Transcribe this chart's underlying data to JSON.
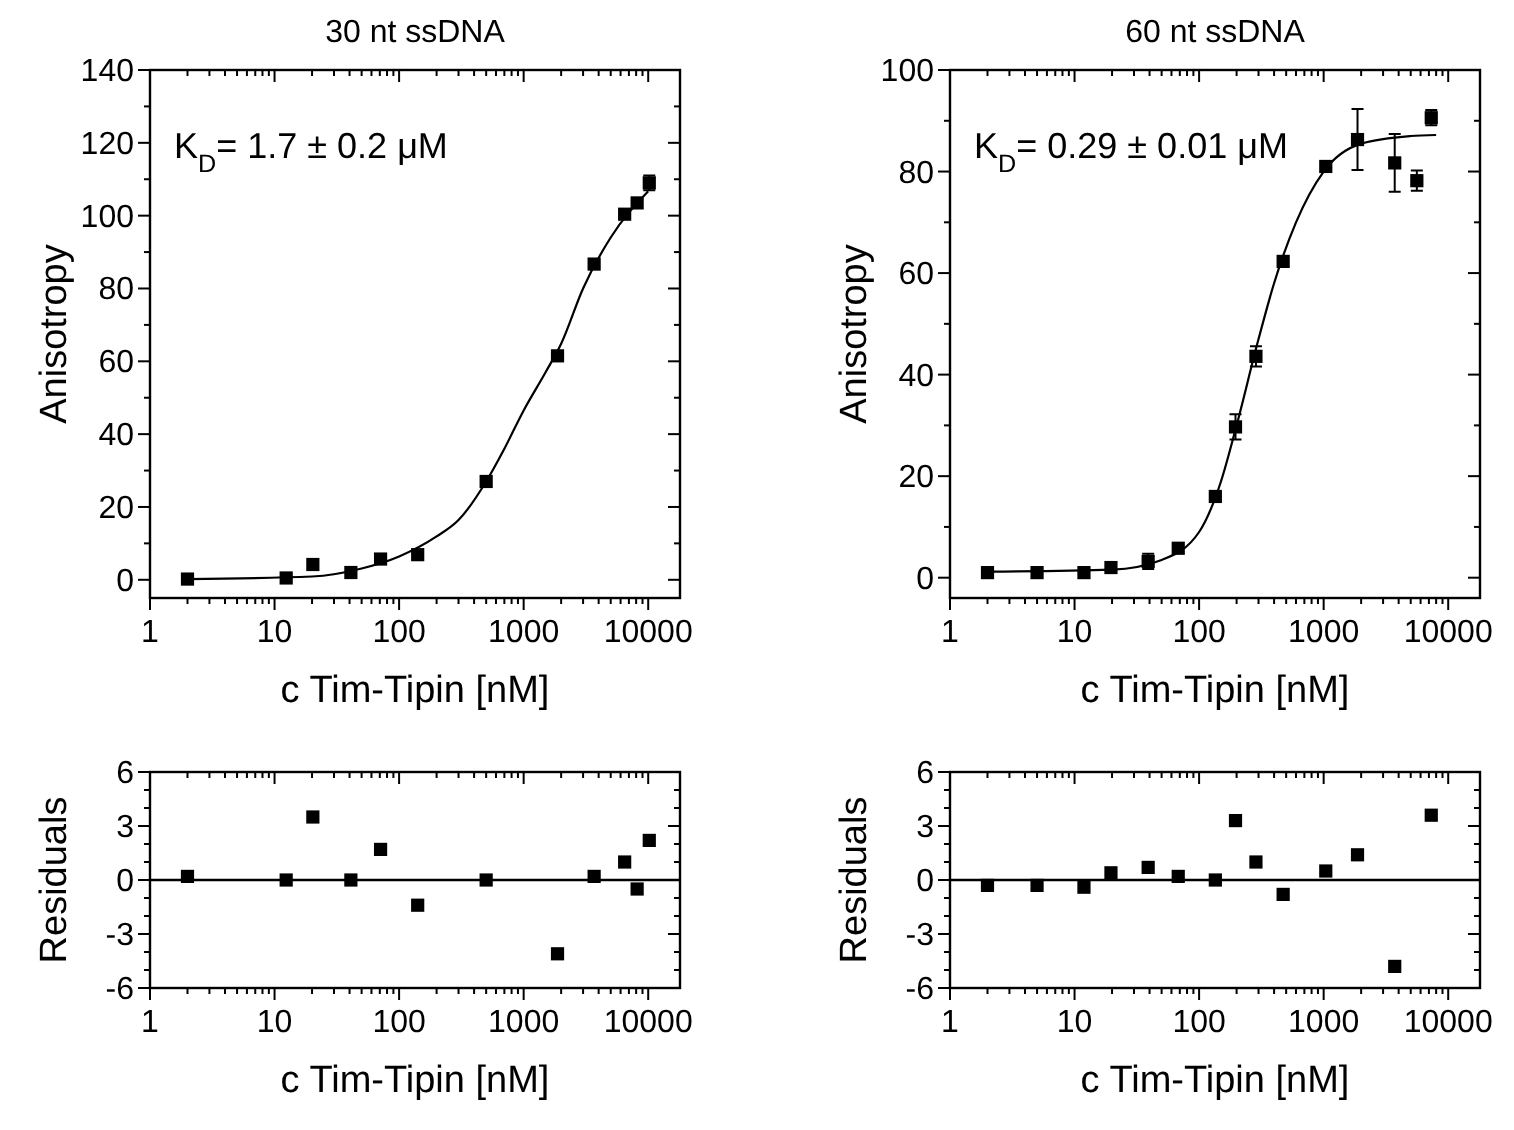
{
  "chart_data": [
    {
      "type": "scatter",
      "title": "30 nt ssDNA",
      "xlabel": "c Tim-Tipin [nM]",
      "ylabel": "Anisotropy",
      "annotations": [
        "K$_{D}$= 1.7 ± 0.2 μM"
      ],
      "log": "x",
      "marker": "square",
      "grid": false,
      "xlim": [
        1,
        18000
      ],
      "ylim": [
        -5,
        140
      ],
      "xticks": [
        1,
        {
          "value": 2,
          "label": null
        },
        {
          "value": 3,
          "label": null
        },
        {
          "value": 4,
          "label": null
        },
        {
          "value": 5,
          "label": null
        },
        {
          "value": 6,
          "label": null
        },
        {
          "value": 7,
          "label": null
        },
        {
          "value": 8,
          "label": null
        },
        {
          "value": 9,
          "label": null
        },
        10,
        {
          "value": 20,
          "label": null
        },
        {
          "value": 30,
          "label": null
        },
        {
          "value": 40,
          "label": null
        },
        {
          "value": 50,
          "label": null
        },
        {
          "value": 60,
          "label": null
        },
        {
          "value": 70,
          "label": null
        },
        {
          "value": 80,
          "label": null
        },
        {
          "value": 90,
          "label": null
        },
        100,
        {
          "value": 200,
          "label": null
        },
        {
          "value": 300,
          "label": null
        },
        {
          "value": 400,
          "label": null
        },
        {
          "value": 500,
          "label": null
        },
        {
          "value": 600,
          "label": null
        },
        {
          "value": 700,
          "label": null
        },
        {
          "value": 800,
          "label": null
        },
        {
          "value": 900,
          "label": null
        },
        1000,
        {
          "value": 2000,
          "label": null
        },
        {
          "value": 3000,
          "label": null
        },
        {
          "value": 4000,
          "label": null
        },
        {
          "value": 5000,
          "label": null
        },
        {
          "value": 6000,
          "label": null
        },
        {
          "value": 7000,
          "label": null
        },
        {
          "value": 8000,
          "label": null
        },
        {
          "value": 9000,
          "label": null
        },
        10000
      ],
      "yticks": [
        0,
        {
          "value": 10,
          "label": null
        },
        20,
        {
          "value": 30,
          "label": null
        },
        40,
        {
          "value": 50,
          "label": null
        },
        60,
        {
          "value": 70,
          "label": null
        },
        80,
        {
          "value": 90,
          "label": null
        },
        100,
        {
          "value": 110,
          "label": null
        },
        120,
        {
          "value": 130,
          "label": null
        },
        140
      ],
      "series": [
        {
          "color": "#000000",
          "x": [
            2,
            12.4,
            20.3,
            41,
            71,
            141,
            500,
            1870,
            3680,
            6470,
            8150,
            10200
          ],
          "values": [
            0.2,
            0.5,
            4.2,
            2,
            5.7,
            6.9,
            27,
            61.5,
            86.7,
            100.4,
            103.5,
            109
          ],
          "errors": [
            null,
            null,
            null,
            null,
            null,
            null,
            null,
            null,
            null,
            null,
            null,
            2
          ]
        },
        {
          "type": "line",
          "marker": "none",
          "color": "#000000",
          "x": [
            2,
            20,
            50,
            100,
            200,
            300,
            500,
            700,
            1000,
            1500,
            2000,
            3000,
            5000,
            10000
          ],
          "values": [
            0.2,
            0.9,
            3.1,
            6.4,
            11.9,
            16.4,
            27,
            36,
            46.5,
            57,
            64.8,
            80,
            94,
            106.7
          ]
        }
      ]
    },
    {
      "type": "scatter",
      "title": "60 nt ssDNA",
      "xlabel": "c Tim-Tipin [nM]",
      "ylabel": "Anisotropy",
      "annotations": [
        "K$_{D}$= 0.29 ± 0.01 μM"
      ],
      "log": "x",
      "marker": "square",
      "grid": false,
      "xlim": [
        1,
        18000
      ],
      "ylim": [
        -4,
        100
      ],
      "xticks": [
        1,
        {
          "value": 2,
          "label": null
        },
        {
          "value": 3,
          "label": null
        },
        {
          "value": 4,
          "label": null
        },
        {
          "value": 5,
          "label": null
        },
        {
          "value": 6,
          "label": null
        },
        {
          "value": 7,
          "label": null
        },
        {
          "value": 8,
          "label": null
        },
        {
          "value": 9,
          "label": null
        },
        10,
        {
          "value": 20,
          "label": null
        },
        {
          "value": 30,
          "label": null
        },
        {
          "value": 40,
          "label": null
        },
        {
          "value": 50,
          "label": null
        },
        {
          "value": 60,
          "label": null
        },
        {
          "value": 70,
          "label": null
        },
        {
          "value": 80,
          "label": null
        },
        {
          "value": 90,
          "label": null
        },
        100,
        {
          "value": 200,
          "label": null
        },
        {
          "value": 300,
          "label": null
        },
        {
          "value": 400,
          "label": null
        },
        {
          "value": 500,
          "label": null
        },
        {
          "value": 600,
          "label": null
        },
        {
          "value": 700,
          "label": null
        },
        {
          "value": 800,
          "label": null
        },
        {
          "value": 900,
          "label": null
        },
        1000,
        {
          "value": 2000,
          "label": null
        },
        {
          "value": 3000,
          "label": null
        },
        {
          "value": 4000,
          "label": null
        },
        {
          "value": 5000,
          "label": null
        },
        {
          "value": 6000,
          "label": null
        },
        {
          "value": 7000,
          "label": null
        },
        {
          "value": 8000,
          "label": null
        },
        {
          "value": 9000,
          "label": null
        },
        10000
      ],
      "yticks": [
        0,
        {
          "value": 10,
          "label": null
        },
        20,
        {
          "value": 30,
          "label": null
        },
        40,
        {
          "value": 50,
          "label": null
        },
        60,
        {
          "value": 70,
          "label": null
        },
        80,
        {
          "value": 90,
          "label": null
        },
        100
      ],
      "series": [
        {
          "color": "#000000",
          "x": [
            2,
            5,
            11.9,
            19.6,
            39,
            68,
            135,
            196,
            286,
            473,
            1040,
            1870,
            3720,
            5600,
            7310
          ],
          "values": [
            1,
            1,
            1,
            2,
            3.2,
            5.8,
            16,
            29.7,
            43.6,
            62.3,
            81,
            86.3,
            81.7,
            78.2,
            90.6
          ],
          "errors": [
            null,
            null,
            null,
            null,
            1.5,
            null,
            null,
            2.5,
            2,
            1,
            null,
            6,
            5.7,
            2,
            1.5
          ]
        },
        {
          "type": "line",
          "marker": "none",
          "color": "#000000",
          "x": [
            2,
            20,
            50,
            100,
            150,
            200,
            300,
            400,
            600,
            1000,
            2000,
            5000,
            8000
          ],
          "values": [
            1.2,
            1.6,
            3.5,
            9,
            19,
            30,
            47,
            58,
            70,
            80,
            85.5,
            87,
            87.2
          ]
        }
      ]
    },
    {
      "type": "scatter",
      "xlabel": "c Tim-Tipin [nM]",
      "ylabel": "Residuals",
      "log": "x",
      "marker": "square",
      "grid": false,
      "xlim": [
        1,
        18000
      ],
      "ylim": [
        -6,
        6
      ],
      "xticks": [
        1,
        {
          "value": 2,
          "label": null
        },
        {
          "value": 3,
          "label": null
        },
        {
          "value": 4,
          "label": null
        },
        {
          "value": 5,
          "label": null
        },
        {
          "value": 6,
          "label": null
        },
        {
          "value": 7,
          "label": null
        },
        {
          "value": 8,
          "label": null
        },
        {
          "value": 9,
          "label": null
        },
        10,
        {
          "value": 20,
          "label": null
        },
        {
          "value": 30,
          "label": null
        },
        {
          "value": 40,
          "label": null
        },
        {
          "value": 50,
          "label": null
        },
        {
          "value": 60,
          "label": null
        },
        {
          "value": 70,
          "label": null
        },
        {
          "value": 80,
          "label": null
        },
        {
          "value": 90,
          "label": null
        },
        100,
        {
          "value": 200,
          "label": null
        },
        {
          "value": 300,
          "label": null
        },
        {
          "value": 400,
          "label": null
        },
        {
          "value": 500,
          "label": null
        },
        {
          "value": 600,
          "label": null
        },
        {
          "value": 700,
          "label": null
        },
        {
          "value": 800,
          "label": null
        },
        {
          "value": 900,
          "label": null
        },
        1000,
        {
          "value": 2000,
          "label": null
        },
        {
          "value": 3000,
          "label": null
        },
        {
          "value": 4000,
          "label": null
        },
        {
          "value": 5000,
          "label": null
        },
        {
          "value": 6000,
          "label": null
        },
        {
          "value": 7000,
          "label": null
        },
        {
          "value": 8000,
          "label": null
        },
        {
          "value": 9000,
          "label": null
        },
        10000
      ],
      "yticks": [
        -6,
        {
          "value": -5,
          "label": null
        },
        {
          "value": -4,
          "label": null
        },
        -3,
        {
          "value": -2,
          "label": null
        },
        {
          "value": -1,
          "label": null
        },
        0,
        {
          "value": 1,
          "label": null
        },
        {
          "value": 2,
          "label": null
        },
        3,
        {
          "value": 4,
          "label": null
        },
        {
          "value": 5,
          "label": null
        },
        6
      ],
      "ref_lines": [
        {
          "axis": "y",
          "value": 0,
          "color": "#000000"
        }
      ],
      "series": [
        {
          "color": "#000000",
          "x": [
            2,
            12.4,
            20.3,
            41,
            71,
            141,
            500,
            1870,
            3680,
            6470,
            8150,
            10200
          ],
          "values": [
            0.2,
            0,
            3.5,
            0,
            1.7,
            -1.4,
            0,
            -4.1,
            0.2,
            1,
            -0.5,
            2.2
          ]
        }
      ]
    },
    {
      "type": "scatter",
      "xlabel": "c Tim-Tipin [nM]",
      "ylabel": "Residuals",
      "log": "x",
      "marker": "square",
      "grid": false,
      "xlim": [
        1,
        18000
      ],
      "ylim": [
        -6,
        6
      ],
      "xticks": [
        1,
        {
          "value": 2,
          "label": null
        },
        {
          "value": 3,
          "label": null
        },
        {
          "value": 4,
          "label": null
        },
        {
          "value": 5,
          "label": null
        },
        {
          "value": 6,
          "label": null
        },
        {
          "value": 7,
          "label": null
        },
        {
          "value": 8,
          "label": null
        },
        {
          "value": 9,
          "label": null
        },
        10,
        {
          "value": 20,
          "label": null
        },
        {
          "value": 30,
          "label": null
        },
        {
          "value": 40,
          "label": null
        },
        {
          "value": 50,
          "label": null
        },
        {
          "value": 60,
          "label": null
        },
        {
          "value": 70,
          "label": null
        },
        {
          "value": 80,
          "label": null
        },
        {
          "value": 90,
          "label": null
        },
        100,
        {
          "value": 200,
          "label": null
        },
        {
          "value": 300,
          "label": null
        },
        {
          "value": 400,
          "label": null
        },
        {
          "value": 500,
          "label": null
        },
        {
          "value": 600,
          "label": null
        },
        {
          "value": 700,
          "label": null
        },
        {
          "value": 800,
          "label": null
        },
        {
          "value": 900,
          "label": null
        },
        1000,
        {
          "value": 2000,
          "label": null
        },
        {
          "value": 3000,
          "label": null
        },
        {
          "value": 4000,
          "label": null
        },
        {
          "value": 5000,
          "label": null
        },
        {
          "value": 6000,
          "label": null
        },
        {
          "value": 7000,
          "label": null
        },
        {
          "value": 8000,
          "label": null
        },
        {
          "value": 9000,
          "label": null
        },
        10000
      ],
      "yticks": [
        -6,
        {
          "value": -5,
          "label": null
        },
        {
          "value": -4,
          "label": null
        },
        -3,
        {
          "value": -2,
          "label": null
        },
        {
          "value": -1,
          "label": null
        },
        0,
        {
          "value": 1,
          "label": null
        },
        {
          "value": 2,
          "label": null
        },
        3,
        {
          "value": 4,
          "label": null
        },
        {
          "value": 5,
          "label": null
        },
        6
      ],
      "ref_lines": [
        {
          "axis": "y",
          "value": 0,
          "color": "#000000"
        }
      ],
      "series": [
        {
          "color": "#000000",
          "x": [
            2,
            5,
            11.9,
            19.6,
            39,
            68,
            135,
            196,
            286,
            473,
            1040,
            1870,
            3720,
            7310
          ],
          "values": [
            -0.3,
            -0.3,
            -0.4,
            0.4,
            0.7,
            0.2,
            0,
            3.3,
            1,
            -0.8,
            0.5,
            1.4,
            -4.8,
            3.6
          ]
        }
      ]
    }
  ]
}
